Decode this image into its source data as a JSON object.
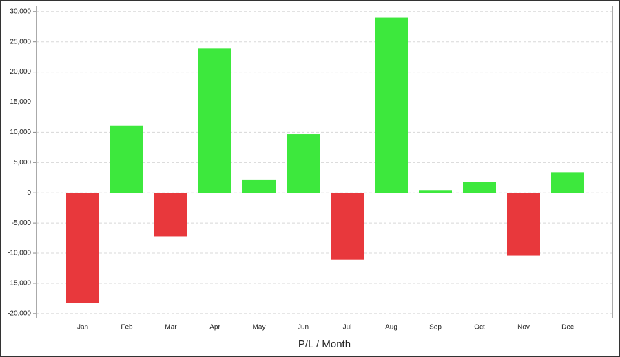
{
  "chart_data": {
    "type": "bar",
    "x_label": "P/L / Month",
    "categories": [
      "Jan",
      "Feb",
      "Mar",
      "Apr",
      "May",
      "Jun",
      "Jul",
      "Aug",
      "Sep",
      "Oct",
      "Nov",
      "Dec"
    ],
    "values": [
      -18200,
      11100,
      -7200,
      23900,
      2200,
      9700,
      -11100,
      29000,
      450,
      1800,
      -10400,
      3400
    ],
    "positive_color": "#3de83d",
    "negative_color": "#e8383c",
    "ylim": [
      -20700,
      31000
    ],
    "yticks": [
      {
        "value": -20000,
        "label": "-20,000"
      },
      {
        "value": -15000,
        "label": "-15,000"
      },
      {
        "value": -10000,
        "label": "-10,000"
      },
      {
        "value": -5000,
        "label": "-5,000"
      },
      0,
      {
        "value": 5000,
        "label": "5,000"
      },
      {
        "value": 10000,
        "label": "10,000"
      },
      {
        "value": 15000,
        "label": "15,000"
      },
      {
        "value": 20000,
        "label": "20,000"
      },
      {
        "value": 25000,
        "label": "25,000"
      },
      {
        "value": 30000,
        "label": "30,000"
      }
    ],
    "grid": true
  }
}
